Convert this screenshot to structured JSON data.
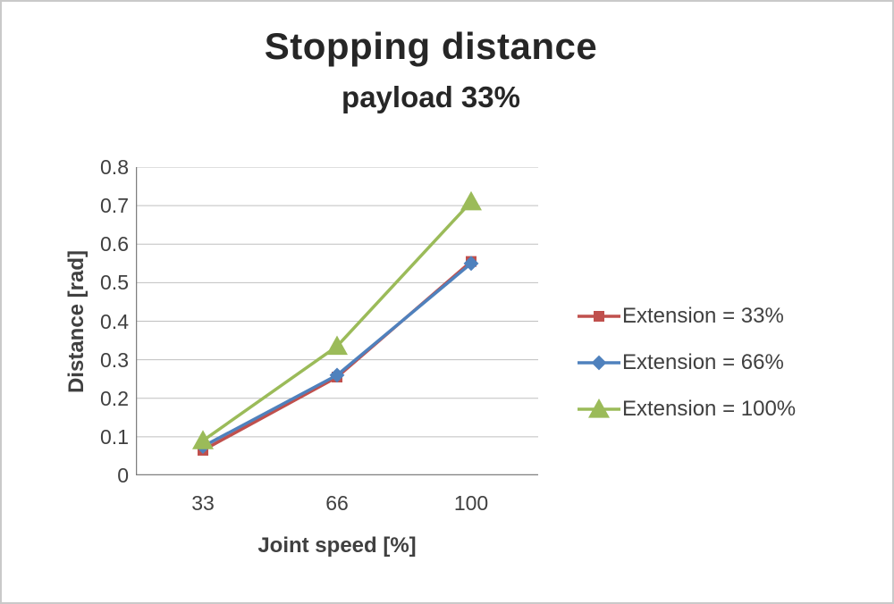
{
  "title": "Stopping distance",
  "subtitle": "payload 33%",
  "chart_data": {
    "type": "line",
    "categories": [
      "33",
      "66",
      "100"
    ],
    "series": [
      {
        "name": "Extension = 33%",
        "color": "#C0504D",
        "marker": "square",
        "values": [
          0.065,
          0.255,
          0.555
        ]
      },
      {
        "name": "Extension = 66%",
        "color": "#4F81BD",
        "marker": "diamond",
        "values": [
          0.075,
          0.26,
          0.55
        ]
      },
      {
        "name": "Extension = 100%",
        "color": "#9BBB59",
        "marker": "triangle",
        "values": [
          0.09,
          0.335,
          0.71
        ]
      }
    ],
    "title": "Stopping distance",
    "subtitle": "payload 33%",
    "xlabel": "Joint speed [%]",
    "ylabel": "Distance [rad]",
    "ylim": [
      0,
      0.8
    ],
    "ytick_step": 0.1,
    "grid": true,
    "legend_position": "right",
    "gridline_color": "#bfbfbf",
    "axis_color": "#7f7f7f"
  }
}
